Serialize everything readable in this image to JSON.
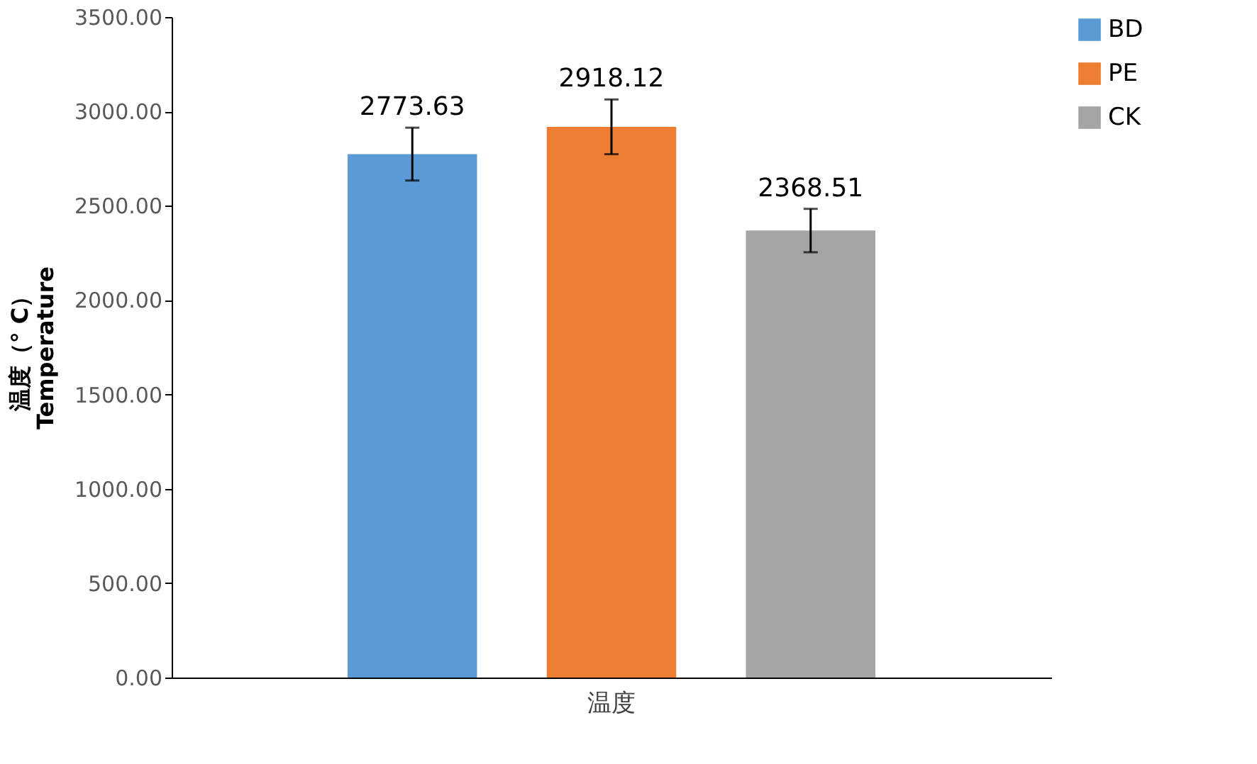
{
  "chart_data": {
    "type": "bar",
    "ylabel": "温度（° C）\nTemperature",
    "categories": [
      "温度"
    ],
    "series": [
      {
        "name": "BD",
        "color": "#5b9bd5",
        "values": [
          2773.63
        ],
        "errors": [
          140
        ]
      },
      {
        "name": "PE",
        "color": "#ed7d31",
        "values": [
          2918.12
        ],
        "errors": [
          145
        ]
      },
      {
        "name": "CK",
        "color": "#a5a5a5",
        "values": [
          2368.51
        ],
        "errors": [
          115
        ]
      }
    ],
    "ylim": [
      0,
      3500
    ],
    "yticks": [
      {
        "value": 0,
        "label": "0.00"
      },
      {
        "value": 500,
        "label": "500.00"
      },
      {
        "value": 1000,
        "label": "1000.00"
      },
      {
        "value": 1500,
        "label": "1500.00"
      },
      {
        "value": 2000,
        "label": "2000.00"
      },
      {
        "value": 2500,
        "label": "2500.00"
      },
      {
        "value": 3000,
        "label": "3000.00"
      },
      {
        "value": 3500,
        "label": "3500.00"
      }
    ],
    "data_labels": true,
    "grid": false,
    "legend": "right"
  }
}
